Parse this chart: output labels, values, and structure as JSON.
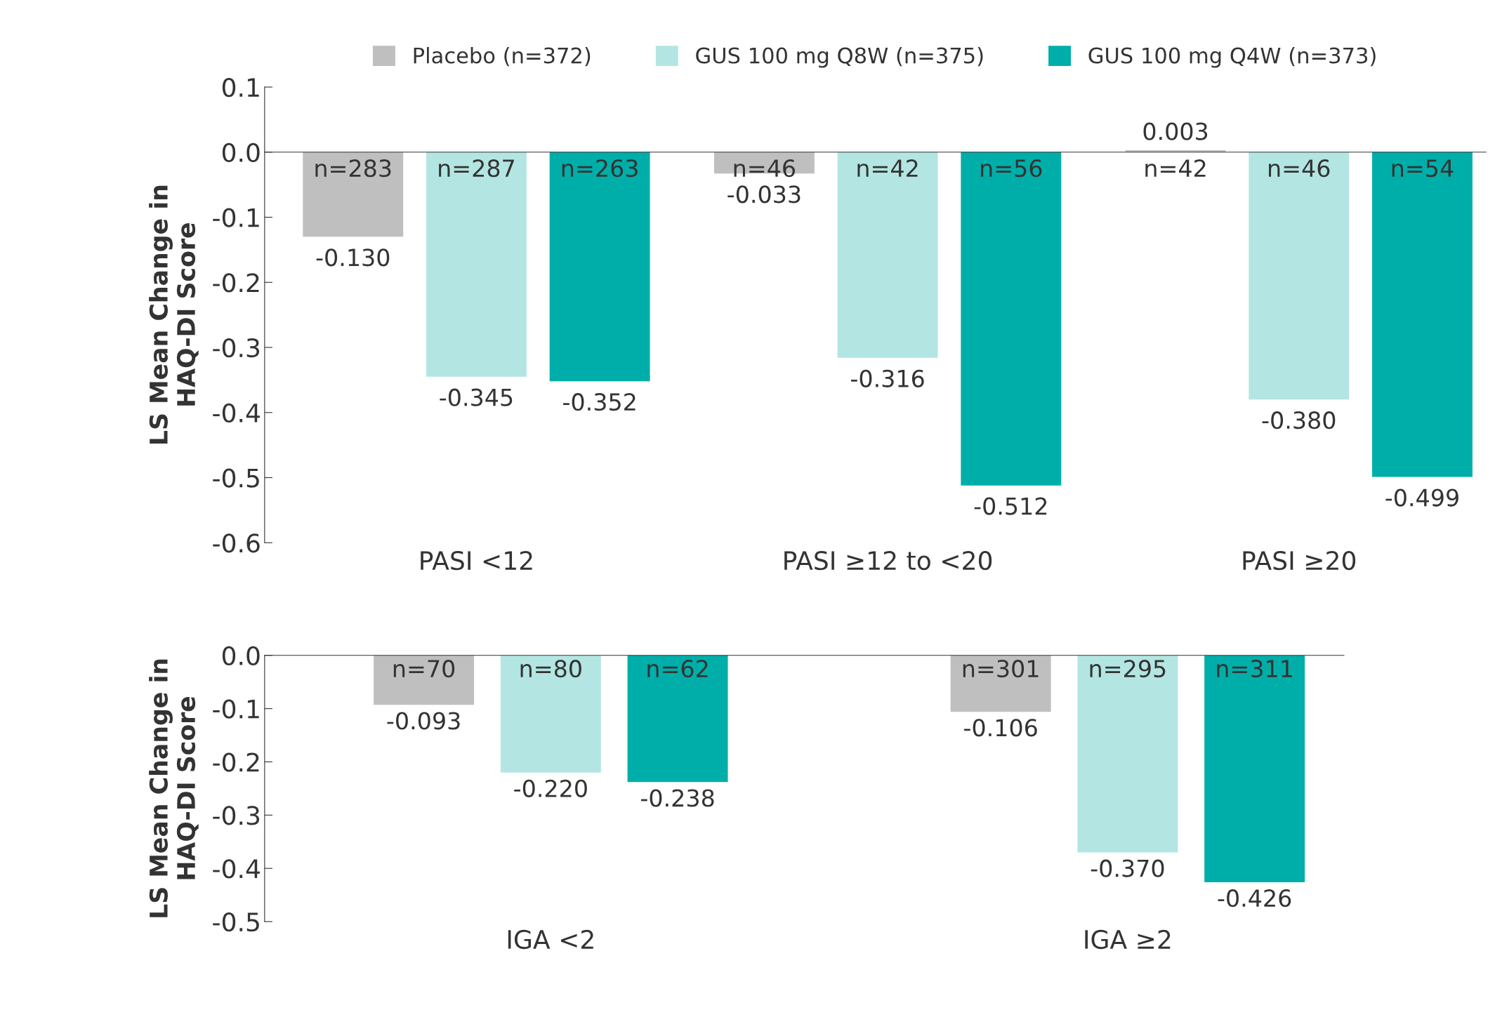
{
  "chart_data": [
    {
      "type": "bar",
      "categories": [
        "PASI <12",
        "PASI ≥12 to <20",
        "PASI ≥20"
      ],
      "ylabel": "LS Mean Change in\nHAQ-DI Score",
      "ylim": [
        -0.6,
        0.1
      ],
      "yticks": [
        {
          "value": -0.6,
          "label": "-0.6"
        },
        {
          "value": -0.5,
          "label": "-0.5"
        },
        {
          "value": -0.4,
          "label": "-0.4"
        },
        {
          "value": -0.3,
          "label": "-0.3"
        },
        {
          "value": -0.2,
          "label": "-0.2"
        },
        {
          "value": -0.1,
          "label": "-0.1"
        },
        {
          "value": 0.0,
          "label": "0.0"
        },
        {
          "value": 0.1,
          "label": "0.1"
        }
      ],
      "legend": "top",
      "series": [
        {
          "name": "Placebo (n=372)",
          "color": "#bfbfbf",
          "values": [
            -0.13,
            -0.033,
            0.003
          ],
          "value_labels": [
            "-0.130",
            "-0.033",
            "0.003"
          ]
        },
        {
          "name": "GUS 100 mg Q8W (n=375)",
          "color": "#b3e6e2",
          "values": [
            -0.345,
            -0.316,
            -0.38
          ],
          "value_labels": [
            "-0.345",
            "-0.316",
            "-0.380"
          ]
        },
        {
          "name": "GUS 100 mg Q4W (n=373)",
          "color": "#00aea9",
          "values": [
            -0.352,
            -0.512,
            -0.499
          ],
          "value_labels": [
            "-0.352",
            "-0.512",
            "-0.499"
          ]
        }
      ],
      "annotations": [
        "n=283",
        "n=287",
        "n=263",
        "n=46",
        "n=42",
        "n=56",
        "n=42",
        "n=46",
        "n=54"
      ]
    },
    {
      "type": "bar",
      "categories": [
        "IGA <2",
        "IGA ≥2"
      ],
      "ylabel": "LS Mean Change in\nHAQ-DI Score",
      "ylim": [
        -0.5,
        0.0
      ],
      "yticks": [
        {
          "value": -0.5,
          "label": "-0.5"
        },
        {
          "value": -0.4,
          "label": "-0.4"
        },
        {
          "value": -0.3,
          "label": "-0.3"
        },
        {
          "value": -0.2,
          "label": "-0.2"
        },
        {
          "value": -0.1,
          "label": "-0.1"
        },
        {
          "value": 0.0,
          "label": "0.0"
        }
      ],
      "series": [
        {
          "color": "#bfbfbf",
          "values": [
            -0.093,
            -0.106
          ],
          "value_labels": [
            "-0.093",
            "-0.106"
          ]
        },
        {
          "color": "#b3e6e2",
          "values": [
            -0.22,
            -0.37
          ],
          "value_labels": [
            "-0.220",
            "-0.370"
          ]
        },
        {
          "color": "#00aea9",
          "values": [
            -0.238,
            -0.426
          ],
          "value_labels": [
            "-0.238",
            "-0.426"
          ]
        }
      ],
      "annotations": [
        "n=70",
        "n=80",
        "n=62",
        "n=301",
        "n=295",
        "n=311"
      ]
    }
  ]
}
